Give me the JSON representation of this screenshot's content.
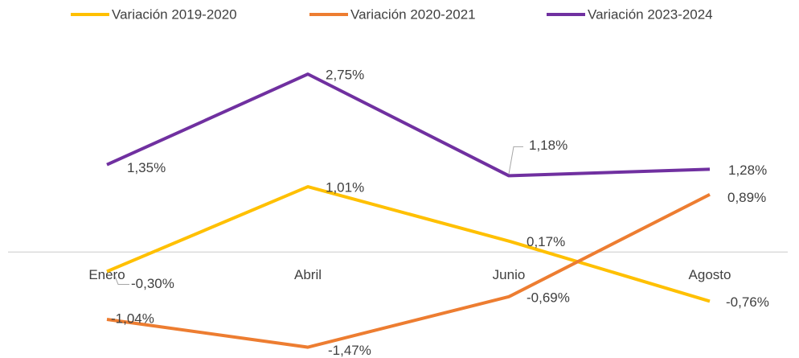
{
  "chart_data": {
    "type": "line",
    "categories": [
      "Enero",
      "Abril",
      "Junio",
      "Agosto"
    ],
    "series": [
      {
        "name": "Variación 2019-2020",
        "color": "#FFC000",
        "values": [
          -0.3,
          1.01,
          0.17,
          -0.76
        ],
        "value_labels": [
          "-0,30%",
          "1,01%",
          "0,17%",
          "-0,76%"
        ]
      },
      {
        "name": "Variación 2020-2021",
        "color": "#ED7D31",
        "values": [
          -1.04,
          -1.47,
          -0.69,
          0.89
        ],
        "value_labels": [
          "-1,04%",
          "-1,47%",
          "-0,69%",
          "0,89%"
        ]
      },
      {
        "name": "Variación 2023-2024",
        "color": "#7030A0",
        "values": [
          1.35,
          2.75,
          1.18,
          1.28
        ],
        "value_labels": [
          "1,35%",
          "2,75%",
          "1,18%",
          "1,28%"
        ]
      }
    ],
    "ylim": [
      -1.5,
      3
    ],
    "legend": "top"
  }
}
